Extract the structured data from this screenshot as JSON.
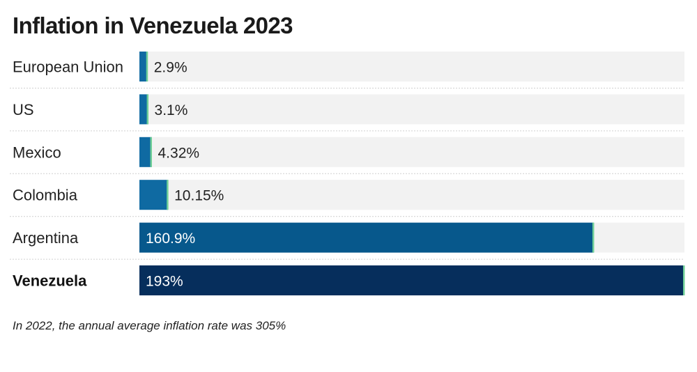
{
  "chart_data": {
    "type": "bar",
    "orientation": "horizontal",
    "title": "Inflation in Venezuela 2023",
    "categories": [
      "European Union",
      "US",
      "Mexico",
      "Colombia",
      "Argentina",
      "Venezuela"
    ],
    "values": [
      2.9,
      3.1,
      4.32,
      10.15,
      160.9,
      193
    ],
    "value_labels": [
      "2.9%",
      "3.1%",
      "4.32%",
      "10.15%",
      "160.9%",
      "193%"
    ],
    "highlight": "Venezuela",
    "xlim": [
      0,
      193
    ],
    "xlabel": "",
    "ylabel": "",
    "unit": "%",
    "note": "In 2022, the annual average inflation rate was 305%"
  },
  "colors": {
    "track": "#f2f2f2",
    "divider": "#cfcfcf",
    "bar_small": "#0f6aa2",
    "bar_argentina": "#07588c",
    "bar_venezuela": "#062e5c",
    "bar_edge": "#6fcf97",
    "label_on_bar": "#ffffff",
    "label_outside": "#222222"
  }
}
